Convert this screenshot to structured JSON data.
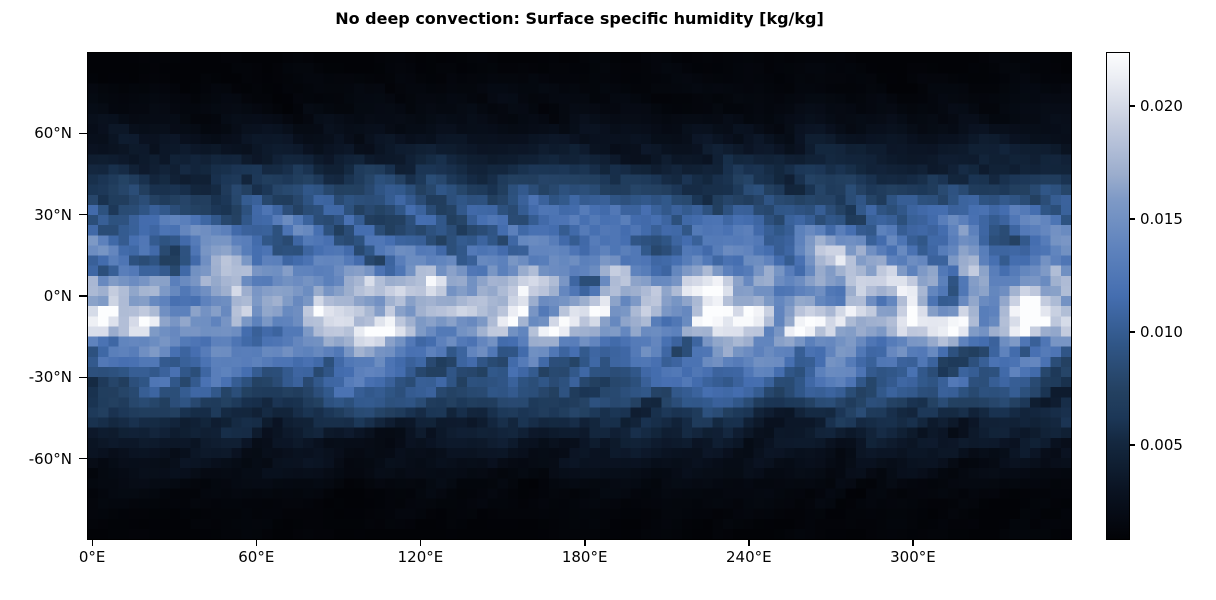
{
  "figure": {
    "background": "#ffffff",
    "text_color": "#000000"
  },
  "chart_data": {
    "type": "heatmap",
    "title": "No deep convection: Surface specific humidity [kg/kg]",
    "xlabel": "",
    "ylabel": "",
    "x_axis": {
      "unit": "degrees east",
      "edge_min_deg": -1.875,
      "span_deg": 360,
      "ticks": [
        {
          "value": 0,
          "label": "0°E"
        },
        {
          "value": 60,
          "label": "60°E"
        },
        {
          "value": 120,
          "label": "120°E"
        },
        {
          "value": 180,
          "label": "180°E"
        },
        {
          "value": 240,
          "label": "240°E"
        },
        {
          "value": 300,
          "label": "300°E"
        }
      ]
    },
    "y_axis": {
      "unit": "degrees north",
      "top_deg": 90,
      "bottom_deg": -90,
      "ticks": [
        {
          "value": 60,
          "label": "60°N"
        },
        {
          "value": 30,
          "label": "30°N"
        },
        {
          "value": 0,
          "label": "0°N"
        },
        {
          "value": -30,
          "label": "-30°N"
        },
        {
          "value": -60,
          "label": "-60°N"
        }
      ]
    },
    "grid": {
      "ncols": 96,
      "nrows": 48,
      "lon_step_deg": 3.75,
      "lat_step_deg": 3.75
    },
    "colorbar": {
      "vmin": 0.0008,
      "vmax": 0.0224,
      "ticks": [
        {
          "value": 0.02,
          "label": "0.020"
        },
        {
          "value": 0.015,
          "label": "0.015"
        },
        {
          "value": 0.01,
          "label": "0.010"
        },
        {
          "value": 0.005,
          "label": "0.005"
        }
      ]
    },
    "colormap": {
      "name": "ice-like (black-blue-white)",
      "stops": [
        [
          0.0,
          "#020307"
        ],
        [
          0.1,
          "#0a1322"
        ],
        [
          0.2,
          "#142840"
        ],
        [
          0.25,
          "#1c3757"
        ],
        [
          0.3,
          "#234060"
        ],
        [
          0.4,
          "#305687"
        ],
        [
          0.5,
          "#456eb0"
        ],
        [
          0.6,
          "#5f83bd"
        ],
        [
          0.7,
          "#7f9ac6"
        ],
        [
          0.75,
          "#9badcd"
        ],
        [
          0.85,
          "#c3cbde"
        ],
        [
          0.95,
          "#eceef4"
        ],
        [
          1.0,
          "#fcfdfe"
        ]
      ]
    },
    "zonal_mean_profile": [
      [
        90,
        0.0009
      ],
      [
        80,
        0.0011
      ],
      [
        70,
        0.0015
      ],
      [
        60,
        0.0024
      ],
      [
        55,
        0.0032
      ],
      [
        50,
        0.0042
      ],
      [
        45,
        0.0055
      ],
      [
        40,
        0.007
      ],
      [
        35,
        0.0086
      ],
      [
        30,
        0.0099
      ],
      [
        25,
        0.0111
      ],
      [
        20,
        0.0123
      ],
      [
        15,
        0.0136
      ],
      [
        10,
        0.015
      ],
      [
        5,
        0.0159
      ],
      [
        0,
        0.0161
      ],
      [
        -5,
        0.0163
      ],
      [
        -10,
        0.016
      ],
      [
        -15,
        0.0142
      ],
      [
        -20,
        0.0126
      ],
      [
        -25,
        0.0113
      ],
      [
        -30,
        0.0101
      ],
      [
        -35,
        0.0087
      ],
      [
        -40,
        0.0071
      ],
      [
        -45,
        0.0055
      ],
      [
        -50,
        0.0042
      ],
      [
        -55,
        0.0031
      ],
      [
        -60,
        0.0023
      ],
      [
        -70,
        0.0014
      ],
      [
        -80,
        0.001
      ],
      [
        -90,
        0.0008
      ]
    ],
    "bands": [
      {
        "lat": -9,
        "half_width_deg": 4.5,
        "factor": 1.15
      }
    ],
    "noise": {
      "seed": 77,
      "amp_large": 0.6,
      "amp_small": 0.25,
      "passes_large": 3,
      "passes_small": 1,
      "mult_clamp": [
        0.45,
        1.5
      ]
    }
  }
}
